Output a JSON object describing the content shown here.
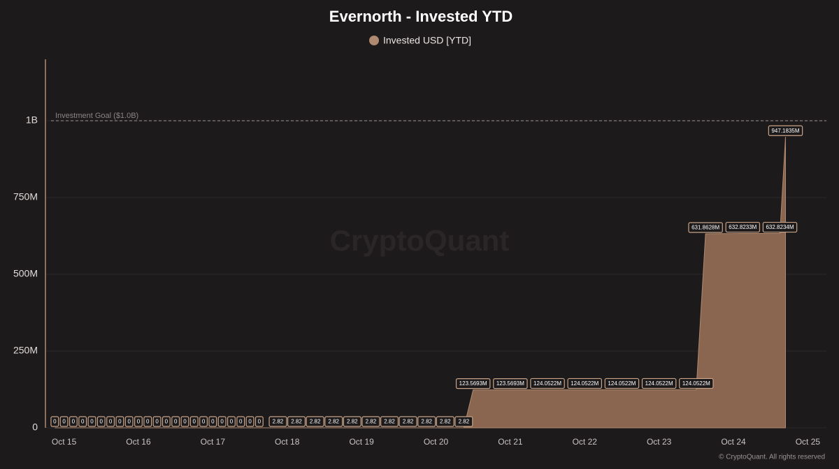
{
  "chart_data": {
    "type": "area",
    "title": "Evernorth - Invested YTD",
    "watermark": "CryptoQuant",
    "credit": "© CryptoQuant. All rights reserved",
    "goal": {
      "value": 1000000000,
      "label": "Investment Goal ($1.0B)"
    },
    "xlim": [
      -0.25,
      10.25
    ],
    "xticks": [
      {
        "value": 0,
        "label": "Oct 15"
      },
      {
        "value": 1,
        "label": "Oct 16"
      },
      {
        "value": 2,
        "label": "Oct 17"
      },
      {
        "value": 3,
        "label": "Oct 18"
      },
      {
        "value": 4,
        "label": "Oct 19"
      },
      {
        "value": 5,
        "label": "Oct 20"
      },
      {
        "value": 6,
        "label": "Oct 21"
      },
      {
        "value": 7,
        "label": "Oct 22"
      },
      {
        "value": 8,
        "label": "Oct 23"
      },
      {
        "value": 9,
        "label": "Oct 24"
      },
      {
        "value": 10,
        "label": "Oct 25"
      }
    ],
    "ylim": [
      0,
      1200000000
    ],
    "yticks": [
      0,
      {
        "value": 250000000,
        "label": "250M"
      },
      {
        "value": 500000000,
        "label": "500M"
      },
      {
        "value": 750000000,
        "label": "750M"
      },
      {
        "value": 1000000000,
        "label": "1B"
      }
    ],
    "grid": true,
    "x": [
      -0.125,
      0,
      0.125,
      0.25,
      0.375,
      0.5,
      0.625,
      0.75,
      0.875,
      1,
      1.125,
      1.25,
      1.375,
      1.5,
      1.625,
      1.75,
      1.875,
      2,
      2.125,
      2.25,
      2.375,
      2.5,
      2.625,
      2.875,
      3.125,
      3.375,
      3.625,
      3.875,
      4.125,
      4.375,
      4.625,
      4.875,
      5.125,
      5.375,
      5.5,
      6,
      6.5,
      7,
      7.5,
      8,
      8.5,
      8.625,
      9.125,
      9.625,
      9.7
    ],
    "series": [
      {
        "name": "Invested USD [YTD]",
        "color": "#8a6650",
        "values": [
          0,
          0,
          0,
          0,
          0,
          0,
          0,
          0,
          0,
          0,
          0,
          0,
          0,
          0,
          0,
          0,
          0,
          0,
          0,
          0,
          0,
          0,
          0,
          2.82,
          2.82,
          2.82,
          2.82,
          2.82,
          2.82,
          2.82,
          2.82,
          2.82,
          2.82,
          2.82,
          123569300,
          123569300,
          124052200,
          124052200,
          124052200,
          124052200,
          124052200,
          631862800,
          632823300,
          632823400,
          947183500
        ],
        "value_labels": [
          "0",
          "0",
          "0",
          "0",
          "0",
          "0",
          "0",
          "0",
          "0",
          "0",
          "0",
          "0",
          "0",
          "0",
          "0",
          "0",
          "0",
          "0",
          "0",
          "0",
          "0",
          "0",
          "0",
          "2.82",
          "2.82",
          "2.82",
          "2.82",
          "2.82",
          "2.82",
          "2.82",
          "2.82",
          "2.82",
          "2.82",
          "2.82",
          "123.5693M",
          "123.5693M",
          "124.0522M",
          "124.0522M",
          "124.0522M",
          "124.0522M",
          "124.0522M",
          "631.8628M",
          "632.8233M",
          "632.8234M",
          "947.1835M"
        ]
      }
    ]
  }
}
